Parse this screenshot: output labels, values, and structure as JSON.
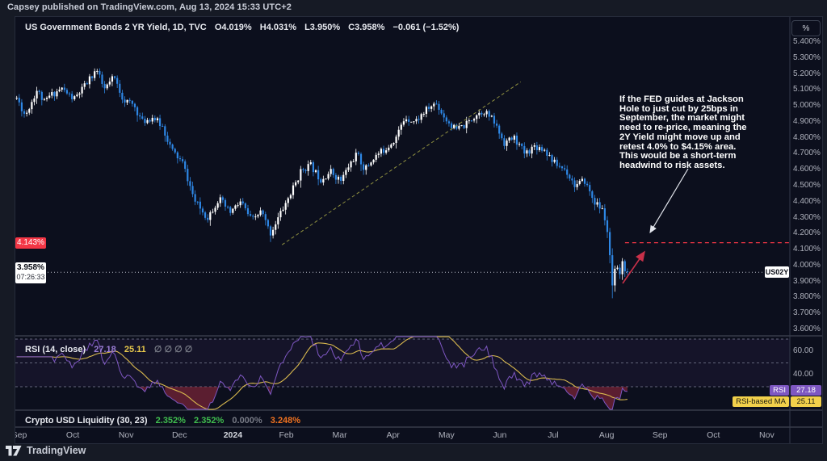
{
  "publish_bar": {
    "text": "Capsey published on TradingView.com, Aug 13, 2024 15:33 UTC+2"
  },
  "main_chart": {
    "legend": {
      "title": "US Government Bonds 2 YR Yield, 1D, TVC",
      "values": [
        "O4.019%",
        "H4.031%",
        "L3.950%",
        "C3.958%"
      ],
      "change": "−0.061 (−1.52%)"
    },
    "annotation": {
      "text": "If the FED guides at Jackson\nHole to just cut by 25bps in\nSeptember, the market might\nneed to re-price, meaning the\n2Y Yield might move up and\nretest 4.0% to $4.15% area.\nThis would be a short-term\nheadwind to risk assets."
    },
    "axis": {
      "unit_button": "%",
      "level_label": "4.143%",
      "last_symbol": "US02Y",
      "last_value": "3.958%",
      "countdown": "07:26:33"
    }
  },
  "rsi_panel": {
    "legend": {
      "title": "RSI (14, close)",
      "rsi_value": "27.18",
      "ma_value": "25.11",
      "hidden": "∅ ∅ ∅ ∅"
    },
    "tags": {
      "rsi_tag": "RSI",
      "rsi_value": "27.18",
      "ma_tag": "RSI-based MA",
      "ma_value": "25.11"
    },
    "axis_ticks": [
      "60.00",
      "40.00"
    ]
  },
  "liquidity_panel": {
    "title": "Crypto USD Liquidity (30, 23)",
    "values": [
      {
        "text": "2.352%",
        "color": "#40bd4e"
      },
      {
        "text": "2.352%",
        "color": "#40bd4e"
      },
      {
        "text": "0.000%",
        "color": "#787b86"
      },
      {
        "text": "3.248%",
        "color": "#ef7220"
      }
    ]
  },
  "footer": {
    "brand": "TradingView",
    "logo_icon": "tradingview-logo"
  },
  "chart_data": {
    "type": "candlestick",
    "title": "US Government Bonds 2 YR Yield",
    "symbol": "US02Y",
    "exchange": "TVC",
    "interval": "1D",
    "unit": "%",
    "ohlc_last": {
      "open": 4.019,
      "high": 4.031,
      "low": 3.95,
      "close": 3.958,
      "change": -0.061,
      "change_pct": -1.52
    },
    "up_color": "#ffffff",
    "down_color": "#2e87e5",
    "y_axis": {
      "ticks": [
        5.4,
        5.3,
        5.2,
        5.1,
        5.0,
        4.9,
        4.8,
        4.7,
        4.6,
        4.5,
        4.4,
        4.3,
        4.2,
        4.1,
        4.0,
        3.9,
        3.8,
        3.7,
        3.6
      ],
      "unit": "%"
    },
    "x_axis": {
      "ticks": [
        "Sep",
        "Oct",
        "Nov",
        "Dec",
        "2024",
        "Feb",
        "Mar",
        "Apr",
        "May",
        "Jun",
        "Jul",
        "Aug",
        "Sep",
        "Oct",
        "Nov"
      ],
      "bold_index": 4,
      "start": "Sep 2023"
    },
    "price_path_anchors_t_yield": [
      [
        -0.05,
        5.05
      ],
      [
        0.11,
        4.94
      ],
      [
        0.33,
        5.1
      ],
      [
        0.47,
        5.02
      ],
      [
        0.56,
        5.06
      ],
      [
        0.79,
        5.11
      ],
      [
        1.02,
        5.04
      ],
      [
        1.24,
        5.13
      ],
      [
        1.44,
        5.23
      ],
      [
        1.59,
        5.1
      ],
      [
        1.77,
        5.18
      ],
      [
        1.95,
        5.04
      ],
      [
        2.15,
        5.0
      ],
      [
        2.3,
        4.9
      ],
      [
        2.5,
        4.93
      ],
      [
        2.68,
        4.87
      ],
      [
        2.86,
        4.72
      ],
      [
        3.06,
        4.64
      ],
      [
        3.29,
        4.4
      ],
      [
        3.52,
        4.3
      ],
      [
        3.74,
        4.42
      ],
      [
        3.94,
        4.33
      ],
      [
        4.15,
        4.4
      ],
      [
        4.35,
        4.28
      ],
      [
        4.53,
        4.34
      ],
      [
        4.7,
        4.2
      ],
      [
        4.88,
        4.32
      ],
      [
        5.08,
        4.45
      ],
      [
        5.29,
        4.6
      ],
      [
        5.45,
        4.63
      ],
      [
        5.64,
        4.54
      ],
      [
        5.83,
        4.59
      ],
      [
        6.02,
        4.53
      ],
      [
        6.2,
        4.64
      ],
      [
        6.32,
        4.7
      ],
      [
        6.47,
        4.6
      ],
      [
        6.65,
        4.68
      ],
      [
        6.85,
        4.73
      ],
      [
        7.05,
        4.8
      ],
      [
        7.23,
        4.93
      ],
      [
        7.41,
        4.9
      ],
      [
        7.61,
        4.97
      ],
      [
        7.8,
        5.02
      ],
      [
        7.98,
        4.92
      ],
      [
        8.17,
        4.85
      ],
      [
        8.36,
        4.88
      ],
      [
        8.56,
        4.95
      ],
      [
        8.71,
        4.97
      ],
      [
        8.89,
        4.9
      ],
      [
        9.08,
        4.77
      ],
      [
        9.27,
        4.8
      ],
      [
        9.47,
        4.7
      ],
      [
        9.65,
        4.75
      ],
      [
        9.83,
        4.73
      ],
      [
        10.03,
        4.64
      ],
      [
        10.23,
        4.6
      ],
      [
        10.41,
        4.5
      ],
      [
        10.59,
        4.53
      ],
      [
        10.77,
        4.4
      ],
      [
        10.94,
        4.34
      ],
      [
        11.02,
        4.2
      ],
      [
        11.06,
        4.05
      ],
      [
        11.09,
        3.82
      ],
      [
        11.13,
        3.93
      ],
      [
        11.18,
        3.99
      ],
      [
        11.23,
        3.93
      ],
      [
        11.29,
        4.01
      ],
      [
        11.39,
        3.958
      ]
    ],
    "trendline": {
      "t1": 4.92,
      "p1": 4.13,
      "t2": 9.39,
      "p2": 5.15,
      "style": "dashed",
      "color": "#8f9040"
    },
    "level_line": {
      "price": 4.143,
      "color": "#f23645",
      "style": "dashed"
    },
    "last_price_line": {
      "price": 3.958,
      "style": "dotted"
    },
    "rsi": {
      "length": 14,
      "source": "close",
      "last": 27.18,
      "ma_last": 25.11,
      "levels": [
        70,
        50,
        30
      ],
      "band": [
        30,
        70
      ],
      "line_color": "#7e57c2",
      "ma_color": "#d9b94e",
      "oversold_fill": "#9c2b3f"
    }
  }
}
